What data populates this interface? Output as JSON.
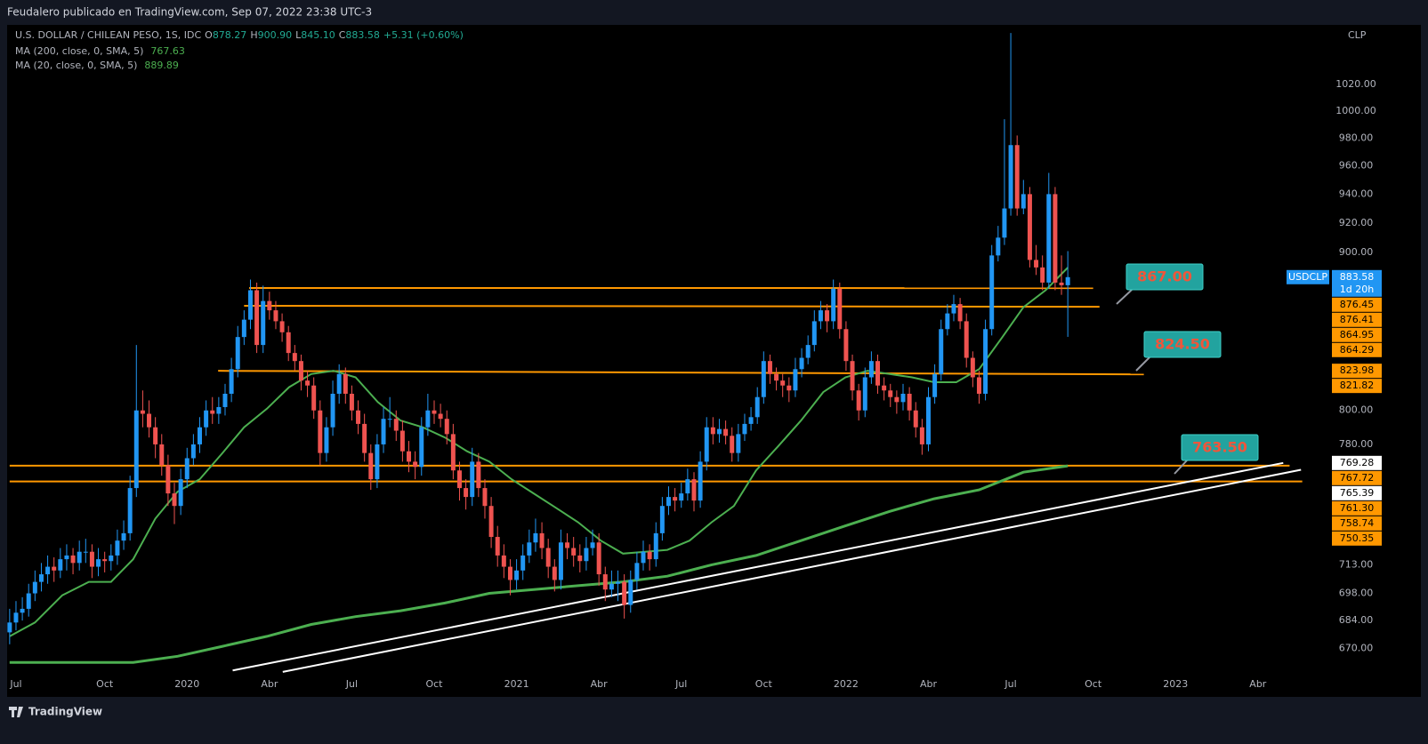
{
  "header": {
    "publisher": "Feudalero publicado en TradingView.com, Sep 07, 2022 23:38 UTC-3",
    "brand": "TradingView"
  },
  "chart_data": {
    "type": "candlestick",
    "symbol": "U.S. DOLLAR / CHILEAN PESO, 1S, IDC",
    "legend_ohlc": [
      {
        "key": "O",
        "text": "878.27"
      },
      {
        "key": "H",
        "text": "900.90"
      },
      {
        "key": "L",
        "text": "845.10"
      },
      {
        "key": "C",
        "text": "883.58"
      }
    ],
    "change": "+5.31 (+0.60%)",
    "currency": "CLP",
    "ticker": "USDCLP",
    "countdown": "1d 20h",
    "log_scale": true,
    "up_color": "#2196f3",
    "down_color": "#ef5350",
    "xlim": [
      -0.4,
      208.4
    ],
    "xticks": [
      {
        "value": 1,
        "label": "Jul"
      },
      {
        "value": 15,
        "label": "Oct"
      },
      {
        "value": 28,
        "label": "2020"
      },
      {
        "value": 41,
        "label": "Abr"
      },
      {
        "value": 54,
        "label": "Jul"
      },
      {
        "value": 67,
        "label": "Oct"
      },
      {
        "value": 80,
        "label": "2021"
      },
      {
        "value": 93,
        "label": "Abr"
      },
      {
        "value": 106,
        "label": "Jul"
      },
      {
        "value": 119,
        "label": "Oct"
      },
      {
        "value": 132,
        "label": "2022"
      },
      {
        "value": 145,
        "label": "Abr"
      },
      {
        "value": 158,
        "label": "Jul"
      },
      {
        "value": 171,
        "label": "Oct"
      },
      {
        "value": 184,
        "label": "2023"
      },
      {
        "value": 197,
        "label": "Abr"
      }
    ],
    "ylim": [
      660,
      1065
    ],
    "yticks": [
      {
        "value": 670,
        "label": "670.00"
      },
      {
        "value": 684,
        "label": "684.00"
      },
      {
        "value": 698,
        "label": "698.00"
      },
      {
        "value": 713,
        "label": "713.00"
      },
      {
        "value": 780,
        "label": "780.00"
      },
      {
        "value": 800,
        "label": "800.00"
      },
      {
        "value": 900,
        "label": "900.00"
      },
      {
        "value": 920,
        "label": "920.00"
      },
      {
        "value": 940,
        "label": "940.00"
      },
      {
        "value": 960,
        "label": "960.00"
      },
      {
        "value": 980,
        "label": "980.00"
      },
      {
        "value": 1000,
        "label": "1000.00"
      },
      {
        "value": 1020,
        "label": "1020.00"
      }
    ],
    "candles": [
      [
        678,
        690,
        672,
        683
      ],
      [
        683,
        694,
        679,
        688
      ],
      [
        688,
        696,
        684,
        690
      ],
      [
        690,
        703,
        686,
        698
      ],
      [
        698,
        710,
        694,
        704
      ],
      [
        704,
        714,
        699,
        708
      ],
      [
        708,
        718,
        703,
        712
      ],
      [
        712,
        717,
        704,
        710
      ],
      [
        710,
        722,
        706,
        716
      ],
      [
        716,
        724,
        710,
        718
      ],
      [
        718,
        722,
        708,
        714
      ],
      [
        714,
        726,
        710,
        720
      ],
      [
        720,
        727,
        714,
        720
      ],
      [
        720,
        724,
        706,
        712
      ],
      [
        712,
        722,
        707,
        716
      ],
      [
        716,
        720,
        709,
        715
      ],
      [
        715,
        724,
        710,
        718
      ],
      [
        718,
        732,
        713,
        726
      ],
      [
        726,
        737,
        721,
        730
      ],
      [
        730,
        762,
        726,
        755
      ],
      [
        755,
        840,
        750,
        800
      ],
      [
        800,
        812,
        790,
        798
      ],
      [
        798,
        806,
        784,
        790
      ],
      [
        790,
        796,
        772,
        780
      ],
      [
        780,
        786,
        762,
        768
      ],
      [
        768,
        774,
        745,
        752
      ],
      [
        752,
        758,
        735,
        745
      ],
      [
        745,
        766,
        740,
        760
      ],
      [
        760,
        778,
        755,
        772
      ],
      [
        772,
        786,
        768,
        780
      ],
      [
        780,
        796,
        775,
        790
      ],
      [
        790,
        806,
        785,
        800
      ],
      [
        800,
        808,
        792,
        798
      ],
      [
        798,
        808,
        792,
        802
      ],
      [
        802,
        816,
        797,
        810
      ],
      [
        810,
        832,
        805,
        825
      ],
      [
        825,
        852,
        820,
        845
      ],
      [
        845,
        862,
        840,
        856
      ],
      [
        856,
        882,
        850,
        875
      ],
      [
        875,
        880,
        835,
        840
      ],
      [
        840,
        878,
        835,
        868
      ],
      [
        868,
        874,
        856,
        862
      ],
      [
        862,
        868,
        850,
        855
      ],
      [
        855,
        860,
        842,
        848
      ],
      [
        848,
        852,
        830,
        835
      ],
      [
        835,
        840,
        824,
        830
      ],
      [
        830,
        834,
        812,
        818
      ],
      [
        818,
        824,
        808,
        815
      ],
      [
        815,
        820,
        795,
        800
      ],
      [
        800,
        806,
        768,
        775
      ],
      [
        775,
        796,
        770,
        790
      ],
      [
        790,
        818,
        785,
        810
      ],
      [
        810,
        828,
        804,
        822
      ],
      [
        822,
        826,
        804,
        810
      ],
      [
        810,
        815,
        794,
        800
      ],
      [
        800,
        806,
        786,
        792
      ],
      [
        792,
        798,
        770,
        775
      ],
      [
        775,
        780,
        754,
        760
      ],
      [
        760,
        786,
        755,
        780
      ],
      [
        780,
        802,
        775,
        795
      ],
      [
        795,
        808,
        790,
        795
      ],
      [
        795,
        800,
        782,
        788
      ],
      [
        788,
        794,
        770,
        776
      ],
      [
        776,
        782,
        764,
        770
      ],
      [
        770,
        776,
        760,
        767
      ],
      [
        767,
        796,
        762,
        790
      ],
      [
        790,
        810,
        785,
        800
      ],
      [
        800,
        806,
        792,
        798
      ],
      [
        798,
        804,
        790,
        795
      ],
      [
        795,
        800,
        780,
        786
      ],
      [
        786,
        792,
        760,
        765
      ],
      [
        765,
        770,
        748,
        755
      ],
      [
        755,
        760,
        743,
        750
      ],
      [
        750,
        778,
        745,
        770
      ],
      [
        770,
        775,
        750,
        755
      ],
      [
        755,
        760,
        738,
        745
      ],
      [
        745,
        750,
        722,
        728
      ],
      [
        728,
        734,
        712,
        718
      ],
      [
        718,
        724,
        706,
        712
      ],
      [
        712,
        716,
        697,
        705
      ],
      [
        705,
        716,
        700,
        710
      ],
      [
        710,
        724,
        705,
        718
      ],
      [
        718,
        732,
        714,
        725
      ],
      [
        725,
        738,
        720,
        730
      ],
      [
        730,
        736,
        716,
        722
      ],
      [
        722,
        727,
        706,
        712
      ],
      [
        712,
        716,
        699,
        705
      ],
      [
        705,
        732,
        700,
        725
      ],
      [
        725,
        730,
        716,
        722
      ],
      [
        722,
        728,
        712,
        718
      ],
      [
        718,
        724,
        709,
        715
      ],
      [
        715,
        728,
        710,
        722
      ],
      [
        722,
        732,
        718,
        725
      ],
      [
        725,
        730,
        702,
        708
      ],
      [
        708,
        712,
        694,
        700
      ],
      [
        700,
        710,
        696,
        703
      ],
      [
        703,
        710,
        694,
        704
      ],
      [
        704,
        708,
        685,
        692
      ],
      [
        692,
        710,
        688,
        705
      ],
      [
        705,
        720,
        700,
        714
      ],
      [
        714,
        726,
        710,
        720
      ],
      [
        720,
        724,
        710,
        716
      ],
      [
        716,
        736,
        712,
        730
      ],
      [
        730,
        750,
        726,
        745
      ],
      [
        745,
        756,
        740,
        750
      ],
      [
        750,
        755,
        742,
        748
      ],
      [
        748,
        758,
        744,
        752
      ],
      [
        752,
        766,
        748,
        760
      ],
      [
        760,
        764,
        742,
        748
      ],
      [
        748,
        776,
        744,
        770
      ],
      [
        770,
        796,
        765,
        790
      ],
      [
        790,
        796,
        780,
        786
      ],
      [
        786,
        795,
        781,
        789
      ],
      [
        789,
        794,
        780,
        785
      ],
      [
        785,
        790,
        770,
        775
      ],
      [
        775,
        792,
        770,
        786
      ],
      [
        786,
        798,
        782,
        792
      ],
      [
        792,
        802,
        788,
        796
      ],
      [
        796,
        814,
        792,
        808
      ],
      [
        808,
        836,
        804,
        830
      ],
      [
        830,
        834,
        816,
        822
      ],
      [
        822,
        826,
        812,
        818
      ],
      [
        818,
        822,
        808,
        815
      ],
      [
        815,
        820,
        805,
        812
      ],
      [
        812,
        832,
        808,
        825
      ],
      [
        825,
        838,
        820,
        832
      ],
      [
        832,
        846,
        828,
        840
      ],
      [
        840,
        862,
        836,
        855
      ],
      [
        855,
        868,
        850,
        862
      ],
      [
        862,
        866,
        848,
        855
      ],
      [
        855,
        882,
        850,
        876
      ],
      [
        876,
        880,
        844,
        850
      ],
      [
        850,
        855,
        824,
        830
      ],
      [
        830,
        834,
        806,
        812
      ],
      [
        812,
        816,
        794,
        800
      ],
      [
        800,
        826,
        796,
        820
      ],
      [
        820,
        836,
        816,
        830
      ],
      [
        830,
        834,
        810,
        815
      ],
      [
        815,
        820,
        806,
        812
      ],
      [
        812,
        816,
        802,
        808
      ],
      [
        808,
        812,
        798,
        805
      ],
      [
        805,
        816,
        800,
        810
      ],
      [
        810,
        814,
        794,
        800
      ],
      [
        800,
        805,
        784,
        790
      ],
      [
        790,
        795,
        774,
        780
      ],
      [
        780,
        814,
        776,
        808
      ],
      [
        808,
        828,
        804,
        822
      ],
      [
        822,
        856,
        818,
        850
      ],
      [
        850,
        866,
        846,
        860
      ],
      [
        860,
        872,
        855,
        866
      ],
      [
        866,
        870,
        850,
        855
      ],
      [
        855,
        860,
        826,
        832
      ],
      [
        832,
        836,
        814,
        820
      ],
      [
        820,
        824,
        804,
        810
      ],
      [
        810,
        856,
        806,
        850
      ],
      [
        850,
        905,
        846,
        898
      ],
      [
        898,
        918,
        894,
        910
      ],
      [
        910,
        994,
        905,
        930
      ],
      [
        930,
        1060,
        925,
        975
      ],
      [
        975,
        982,
        925,
        930
      ],
      [
        930,
        950,
        926,
        940
      ],
      [
        940,
        945,
        890,
        895
      ],
      [
        895,
        905,
        885,
        890
      ],
      [
        890,
        898,
        875,
        880
      ],
      [
        880,
        955,
        876,
        940
      ],
      [
        940,
        945,
        875,
        880
      ],
      [
        880,
        898,
        872,
        878.27
      ],
      [
        878.27,
        900.9,
        845.1,
        883.58
      ]
    ],
    "series": [
      {
        "name": "MA (200, close, 0, SMA, 5)",
        "color": "#4caf50",
        "width": 3,
        "x": [
          0,
          19.5,
          26.5,
          33.6,
          40.6,
          47.6,
          54.6,
          61.7,
          68.7,
          75.7,
          82.7,
          89.7,
          96.8,
          103.8,
          110.8,
          117.8,
          124.9,
          131.9,
          138.9,
          145.9,
          153,
          160,
          167
        ],
        "values": [
          663,
          663,
          666,
          671,
          676,
          682,
          686,
          689,
          693,
          698,
          700,
          702,
          704,
          707,
          713,
          718,
          726,
          734,
          742,
          749,
          754,
          764,
          767.63
        ]
      },
      {
        "name": "MA (20, close, 0, SMA, 5)",
        "color": "#4caf50",
        "width": 2,
        "x": [
          0,
          4,
          8.3,
          12.5,
          16,
          19.5,
          23,
          26.5,
          30,
          33.6,
          37,
          40.6,
          44.1,
          47.6,
          51.1,
          54.6,
          58.1,
          61.7,
          65.2,
          68.7,
          72.2,
          75.7,
          79.2,
          82.7,
          86.2,
          89.7,
          93.3,
          96.8,
          100.3,
          103.8,
          107.3,
          110.8,
          114.3,
          117.8,
          121.3,
          124.9,
          128.4,
          131.9,
          135.4,
          138.9,
          142.4,
          145.9,
          149.4,
          153,
          156.5,
          160,
          163.5,
          167
        ],
        "values": [
          676,
          683,
          697,
          704,
          704,
          716,
          738,
          753,
          760,
          775,
          790,
          801,
          814,
          822,
          824,
          820,
          805,
          794,
          790,
          784,
          776,
          770,
          760,
          752,
          744,
          736,
          726,
          719,
          720,
          721,
          726,
          736,
          745,
          765,
          779,
          794,
          811,
          820,
          824,
          822,
          820,
          817,
          817,
          825,
          844,
          864,
          875,
          889.89
        ]
      }
    ],
    "levels": [
      {
        "values": [
          876.45,
          876.41
        ],
        "x": [
          37.8,
          171
        ],
        "color": "#ff9800"
      },
      {
        "values": [
          864.95,
          864.29
        ],
        "x": [
          37,
          172
        ],
        "color": "#ff9800"
      },
      {
        "values": [
          823.98,
          821.82
        ],
        "x": [
          32.9,
          179
        ],
        "color": "#ff9800"
      },
      {
        "values": [
          767.72
        ],
        "x": [
          0,
          202
        ],
        "color": "#ff9800"
      },
      {
        "values": [
          758.74
        ],
        "x": [
          0,
          204
        ],
        "color": "#ff9800"
      }
    ],
    "trendlines": [
      {
        "x": [
          35.2,
          201
        ],
        "values": [
          659,
          769.28
        ],
        "color": "#ffffff"
      },
      {
        "x": [
          43.1,
          203.8
        ],
        "values": [
          658.3,
          765.39
        ],
        "color": "#ffffff"
      }
    ],
    "extra_labels": [
      {
        "value": 761.3,
        "label": "761.30",
        "color": "#ff9800"
      },
      {
        "value": 750.35,
        "color": "#ff9800"
      }
    ],
    "annotations": [
      {
        "text": "867.00"
      },
      {
        "text": "824.50"
      },
      {
        "text": "763.50"
      }
    ]
  }
}
